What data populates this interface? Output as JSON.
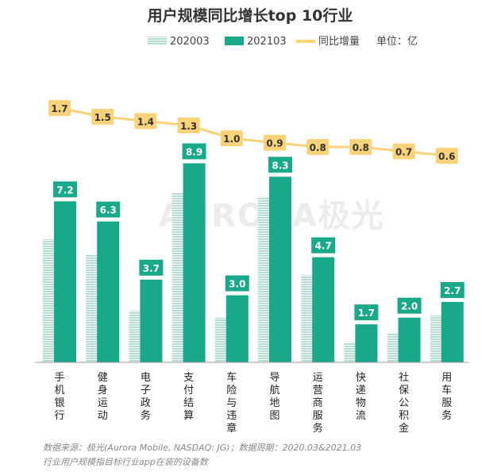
{
  "chart_data": {
    "type": "bar",
    "title": "用户规模同比增长top 10行业",
    "unit_label": "单位：亿",
    "categories": [
      "手机银行",
      "健身运动",
      "电子政务",
      "支付结算",
      "车险与违章",
      "导航地图",
      "运营商服务",
      "快递物流",
      "社保公积金",
      "用车服务"
    ],
    "series": [
      {
        "name": "202003",
        "values": [
          5.5,
          4.8,
          2.3,
          7.6,
          2.0,
          7.4,
          3.9,
          0.9,
          1.3,
          2.1
        ],
        "labeled": false
      },
      {
        "name": "202103",
        "values": [
          7.2,
          6.3,
          3.7,
          8.9,
          3.0,
          8.3,
          4.7,
          1.7,
          2.0,
          2.7
        ],
        "labeled": true
      }
    ],
    "line": {
      "name": "同比增量",
      "values": [
        1.7,
        1.5,
        1.4,
        1.3,
        1.0,
        0.9,
        0.8,
        0.8,
        0.7,
        0.6
      ]
    },
    "value_labels": [
      "7.2",
      "6.3",
      "3.7",
      "8.9",
      "3.0",
      "8.3",
      "4.7",
      "1.7",
      "2.0",
      "2.7"
    ],
    "line_labels": [
      "1.7",
      "1.5",
      "1.4",
      "1.3",
      "1.0",
      "0.9",
      "0.8",
      "0.8",
      "0.7",
      "0.6"
    ],
    "ylim": [
      0,
      10
    ],
    "grid": false,
    "legend_position": "top",
    "colors": {
      "series_2020": "#b4ded2",
      "series_2021": "#1aa88a",
      "line": "#fad27a",
      "label_bg": "#1aa88a"
    }
  },
  "footer": {
    "source": "数据来源：极光(Aurora Mobile, NASDAQ: JG)；数据周期：2020.03&2021.03",
    "note": "行业用户规模指目标行业app在装的设备数"
  },
  "watermark": "AURORA极光"
}
